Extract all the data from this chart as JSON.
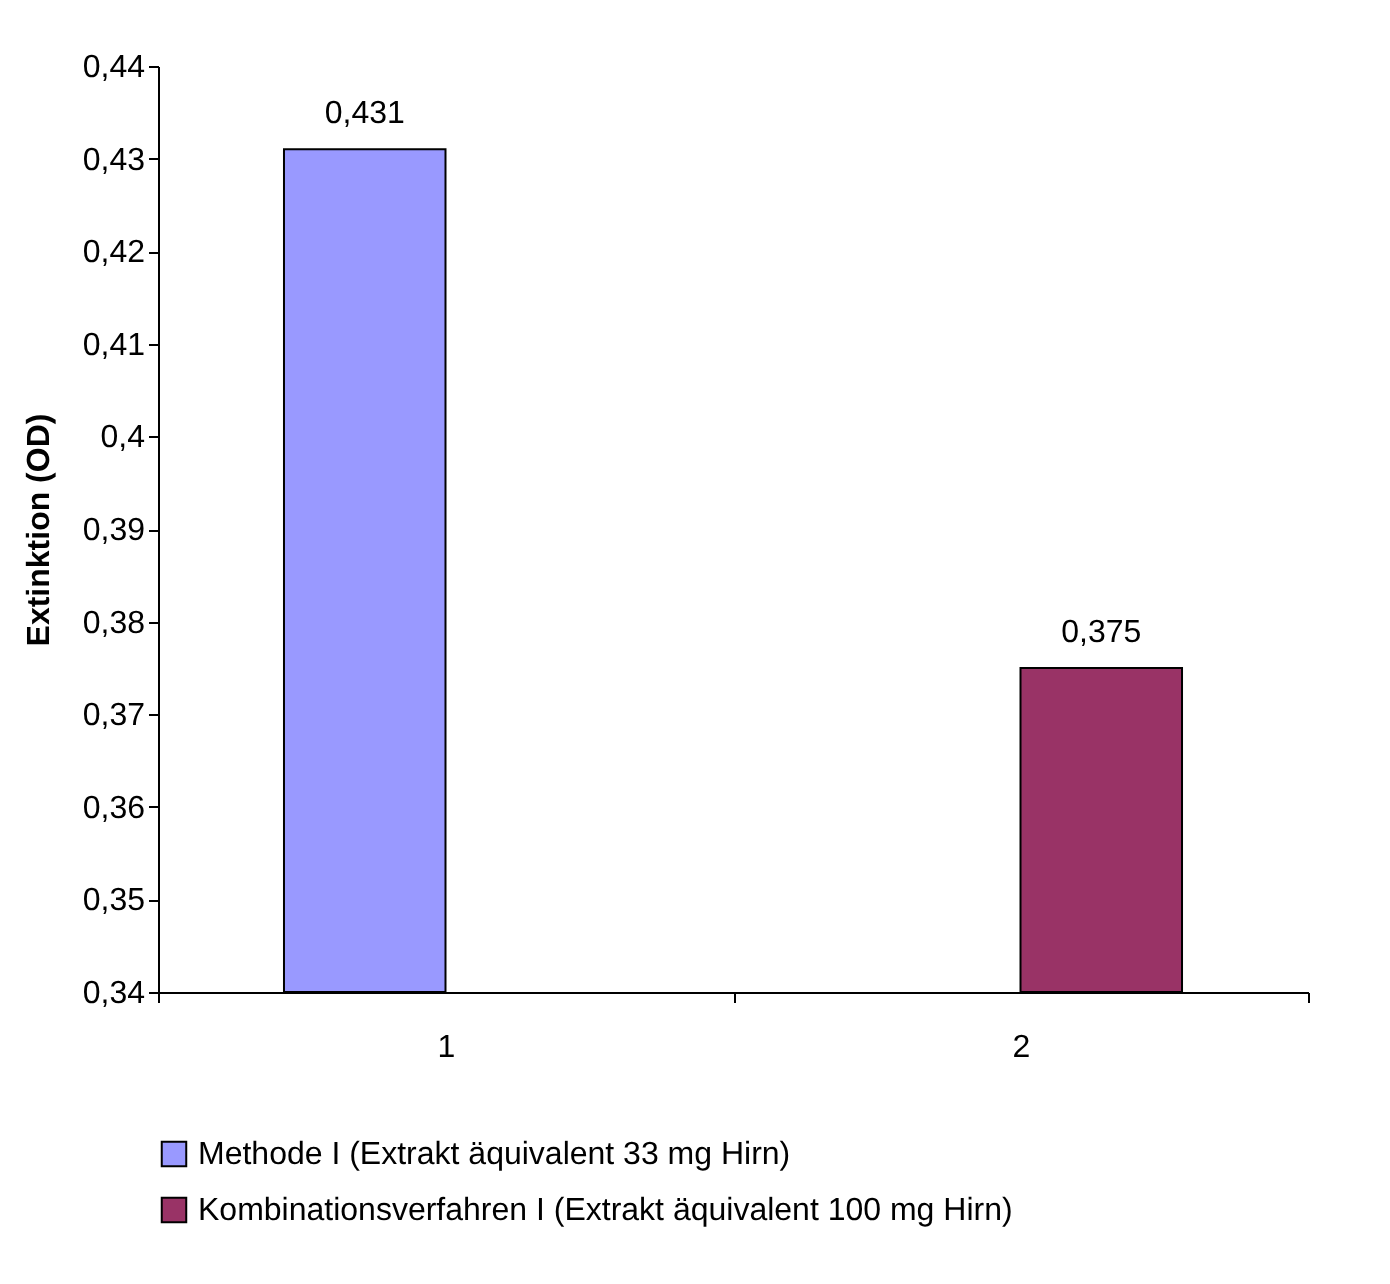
{
  "chart_data": {
    "type": "bar",
    "ylabel": "Extinktion (OD)",
    "categories": [
      "1",
      "2"
    ],
    "series": [
      {
        "name": "Methode I (Extrakt äquivalent 33 mg Hirn)",
        "color": "#9999ff",
        "values": [
          0.431,
          null
        ],
        "value_labels": [
          "0,431",
          null
        ]
      },
      {
        "name": "Kombinationsverfahren I (Extrakt äquivalent 100 mg Hirn)",
        "color": "#993366",
        "values": [
          null,
          0.375
        ],
        "value_labels": [
          null,
          "0,375"
        ]
      }
    ],
    "ylim": [
      0.34,
      0.44
    ],
    "yticks": [
      {
        "value": 0.34,
        "label": "0,34"
      },
      {
        "value": 0.35,
        "label": "0,35"
      },
      {
        "value": 0.36,
        "label": "0,36"
      },
      {
        "value": 0.37,
        "label": "0,37"
      },
      {
        "value": 0.38,
        "label": "0,38"
      },
      {
        "value": 0.39,
        "label": "0,39"
      },
      {
        "value": 0.4,
        "label": "0,4"
      },
      {
        "value": 0.41,
        "label": "0,41"
      },
      {
        "value": 0.42,
        "label": "0,42"
      },
      {
        "value": 0.43,
        "label": "0,43"
      },
      {
        "value": 0.44,
        "label": "0,44"
      }
    ],
    "grid": false,
    "legend": "bottom"
  }
}
